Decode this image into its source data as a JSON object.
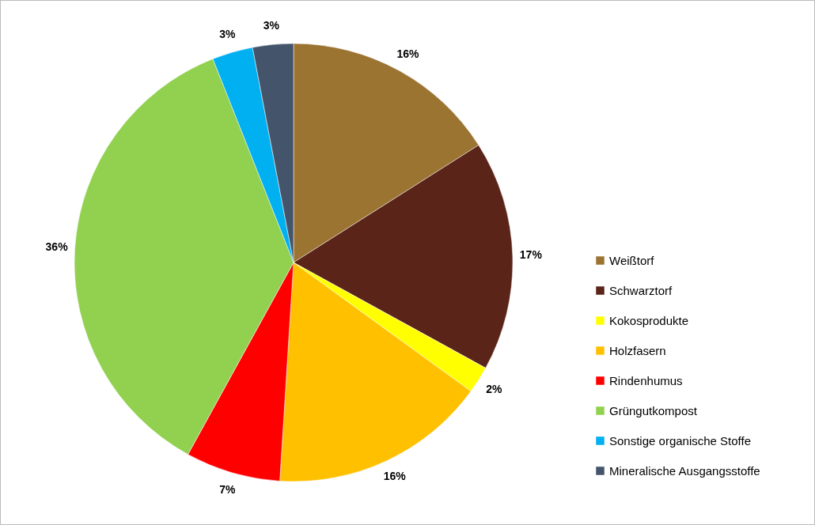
{
  "chart_data": {
    "type": "pie",
    "categories": [
      "Weißtorf",
      "Schwarztorf",
      "Kokosprodukte",
      "Holzfasern",
      "Rindenhumus",
      "Grüngutkompost",
      "Sonstige organische Stoffe",
      "Mineralische Ausgangsstoffe"
    ],
    "values": [
      16,
      17,
      2,
      16,
      7,
      36,
      3,
      3
    ],
    "value_labels": [
      "16%",
      "17%",
      "2%",
      "16%",
      "7%",
      "36%",
      "3%",
      "3%"
    ],
    "colors": [
      "#9b7432",
      "#5a2418",
      "#ffff00",
      "#ffc000",
      "#ff0000",
      "#92d050",
      "#00b0f0",
      "#44546a"
    ],
    "legend": "right"
  }
}
